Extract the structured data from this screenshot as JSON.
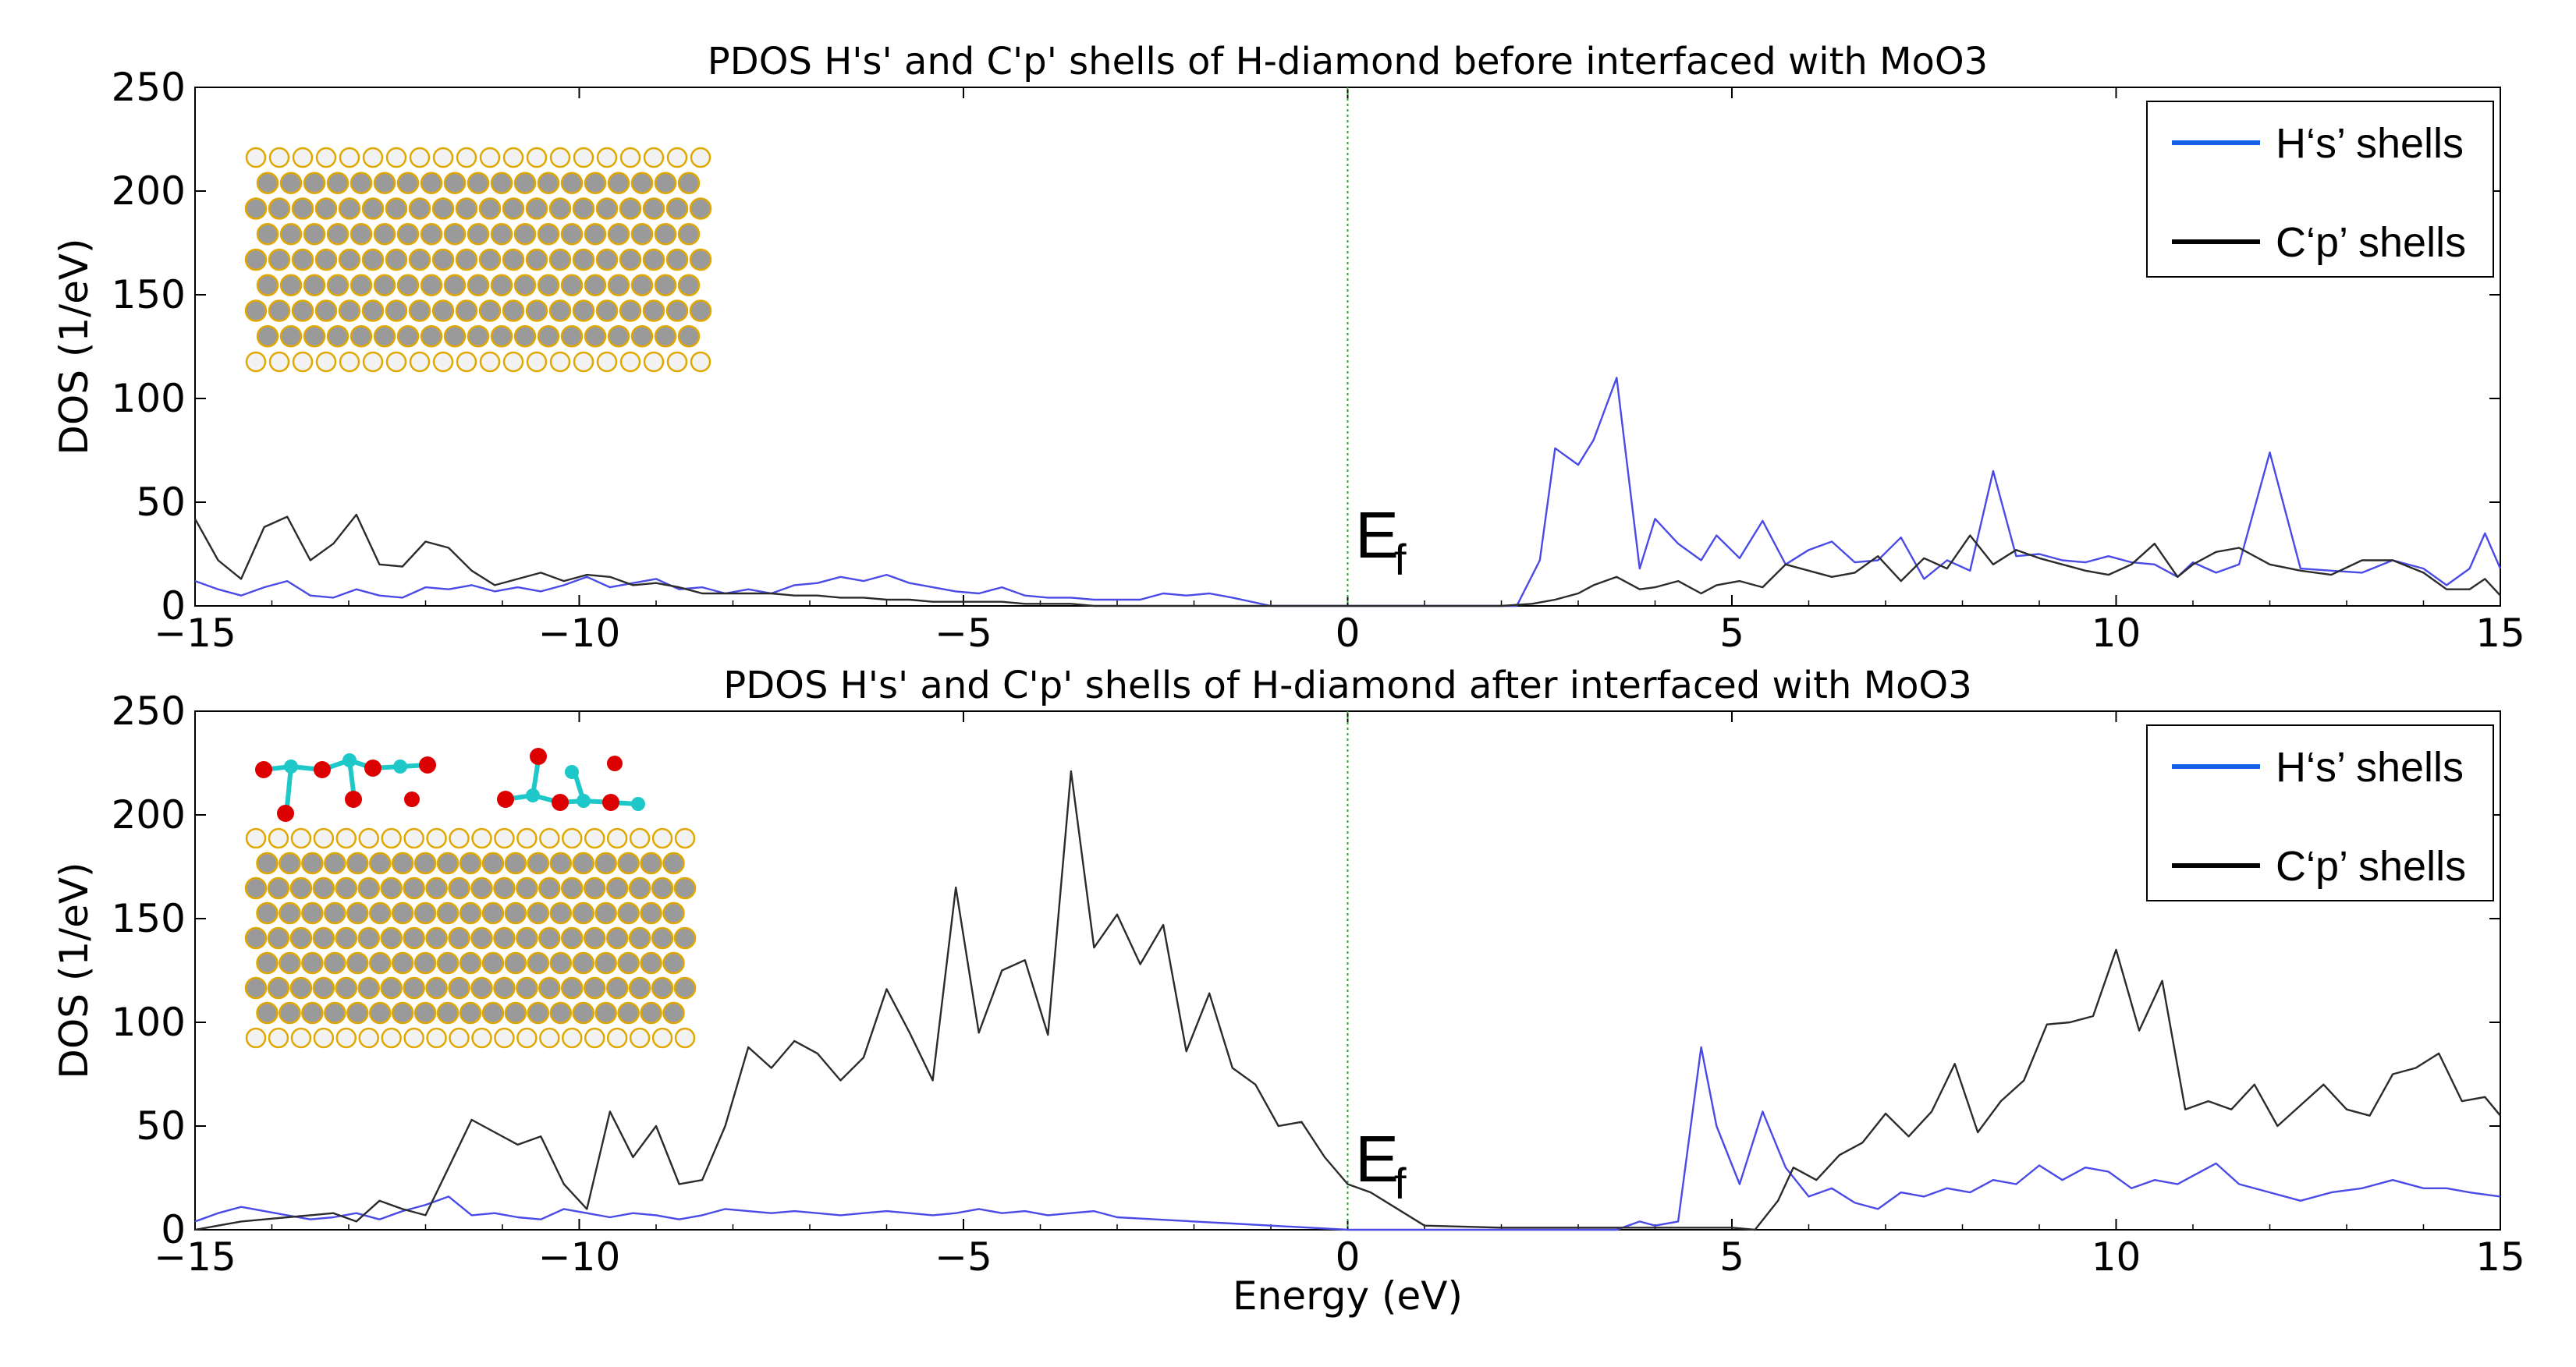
{
  "colors": {
    "h_s": "#4a4ae6",
    "c_p": "#2b2b2b",
    "legend_h_s": "#1560e6",
    "legend_c_p": "#000000",
    "fermi": "#2ca02c",
    "atom_c": "#9a9a9a",
    "atom_edge": "#e0a800",
    "atom_o": "#dd0000",
    "atom_mo": "#1ec8c8"
  },
  "icons": {
    "inset_top": "h-diamond-slab-structure",
    "inset_bottom": "h-diamond-moo3-interface-structure"
  },
  "chart_data": [
    {
      "type": "line",
      "title": "PDOS H's' and C'p' shells of H-diamond before interfaced with MoO3",
      "xlabel": "",
      "ylabel": "DOS (1/eV)",
      "xlim": [
        -15,
        15
      ],
      "ylim": [
        0,
        250
      ],
      "xticks": [
        -15,
        -10,
        -5,
        0,
        5,
        10,
        15
      ],
      "xtick_labels": [
        "−15",
        "−10",
        "−5",
        "0",
        "5",
        "10",
        "15"
      ],
      "yticks": [
        0,
        50,
        100,
        150,
        200,
        250
      ],
      "fermi_label": "E",
      "fermi_sub": "f",
      "legend": [
        "H‘s’ shells",
        "C‘p’ shells"
      ],
      "series": [
        {
          "name": "H's' shells",
          "x": [
            -15,
            -14.7,
            -14.4,
            -14.1,
            -13.8,
            -13.5,
            -13.2,
            -12.9,
            -12.6,
            -12.3,
            -12,
            -11.7,
            -11.4,
            -11.1,
            -10.8,
            -10.5,
            -10.2,
            -9.9,
            -9.6,
            -9.3,
            -9,
            -8.7,
            -8.4,
            -8.1,
            -7.8,
            -7.5,
            -7.2,
            -6.9,
            -6.6,
            -6.3,
            -6,
            -5.7,
            -5.4,
            -5.1,
            -4.8,
            -4.5,
            -4.2,
            -3.9,
            -3.6,
            -3.3,
            -3,
            -2.7,
            -2.4,
            -2.1,
            -1.8,
            -1.5,
            -1,
            -0.5,
            0,
            0.5,
            1,
            1.5,
            2,
            2.2,
            2.5,
            2.7,
            3,
            3.2,
            3.5,
            3.8,
            4,
            4.3,
            4.6,
            4.8,
            5.1,
            5.4,
            5.7,
            6,
            6.3,
            6.6,
            6.9,
            7.2,
            7.5,
            7.8,
            8.1,
            8.4,
            8.7,
            9,
            9.3,
            9.6,
            9.9,
            10.2,
            10.5,
            10.8,
            11,
            11.3,
            11.6,
            12,
            12.4,
            12.8,
            13.2,
            13.6,
            14,
            14.3,
            14.6,
            14.8,
            15
          ],
          "values": [
            12,
            8,
            5,
            9,
            12,
            5,
            4,
            8,
            5,
            4,
            9,
            8,
            10,
            7,
            9,
            7,
            10,
            14,
            9,
            11,
            13,
            8,
            9,
            6,
            8,
            6,
            10,
            11,
            14,
            12,
            15,
            11,
            9,
            7,
            6,
            9,
            5,
            4,
            4,
            3,
            3,
            3,
            6,
            5,
            6,
            4,
            0,
            0,
            0,
            0,
            0,
            0,
            0,
            0,
            22,
            76,
            68,
            80,
            110,
            18,
            42,
            30,
            22,
            34,
            23,
            41,
            20,
            27,
            31,
            21,
            22,
            33,
            13,
            22,
            17,
            65,
            24,
            25,
            22,
            21,
            24,
            21,
            20,
            14,
            21,
            16,
            20,
            74,
            18,
            17,
            16,
            22,
            18,
            10,
            18,
            35,
            18
          ]
        },
        {
          "name": "C'p' shells",
          "x": [
            -15,
            -14.7,
            -14.4,
            -14.1,
            -13.8,
            -13.5,
            -13.2,
            -12.9,
            -12.6,
            -12.3,
            -12,
            -11.7,
            -11.4,
            -11.1,
            -10.8,
            -10.5,
            -10.2,
            -9.9,
            -9.6,
            -9.3,
            -9,
            -8.7,
            -8.4,
            -8.1,
            -7.8,
            -7.5,
            -7.2,
            -6.9,
            -6.6,
            -6.3,
            -6,
            -5.7,
            -5.4,
            -5.1,
            -4.8,
            -4.5,
            -4.2,
            -3.9,
            -3.6,
            -3.3,
            -3,
            -2.5,
            -2,
            -1,
            0,
            1,
            2,
            2.4,
            2.7,
            3,
            3.2,
            3.5,
            3.8,
            4,
            4.3,
            4.6,
            4.8,
            5.1,
            5.4,
            5.7,
            6,
            6.3,
            6.6,
            6.9,
            7.2,
            7.5,
            7.8,
            8.1,
            8.4,
            8.7,
            9,
            9.3,
            9.6,
            9.9,
            10.2,
            10.5,
            10.8,
            11,
            11.3,
            11.6,
            12,
            12.4,
            12.8,
            13.2,
            13.6,
            14,
            14.3,
            14.6,
            14.8,
            15
          ],
          "values": [
            42,
            22,
            13,
            38,
            43,
            22,
            30,
            44,
            20,
            19,
            31,
            28,
            17,
            10,
            13,
            16,
            12,
            15,
            14,
            10,
            11,
            9,
            6,
            6,
            6,
            6,
            5,
            5,
            4,
            4,
            3,
            3,
            2,
            2,
            2,
            2,
            1,
            1,
            1,
            0,
            0,
            0,
            0,
            0,
            0,
            0,
            0,
            1,
            3,
            6,
            10,
            14,
            8,
            9,
            12,
            6,
            10,
            12,
            9,
            20,
            17,
            14,
            16,
            24,
            12,
            23,
            18,
            34,
            20,
            27,
            23,
            20,
            17,
            15,
            20,
            30,
            14,
            20,
            26,
            28,
            20,
            17,
            15,
            22,
            22,
            16,
            8,
            8,
            13,
            5
          ]
        }
      ]
    },
    {
      "type": "line",
      "title": "PDOS H's' and C'p' shells of H-diamond after interfaced with MoO3",
      "xlabel": "Energy (eV)",
      "ylabel": "DOS (1/eV)",
      "xlim": [
        -15,
        15
      ],
      "ylim": [
        0,
        250
      ],
      "xticks": [
        -15,
        -10,
        -5,
        0,
        5,
        10,
        15
      ],
      "xtick_labels": [
        "−15",
        "−10",
        "−5",
        "0",
        "5",
        "10",
        "15"
      ],
      "yticks": [
        0,
        50,
        100,
        150,
        200,
        250
      ],
      "fermi_label": "E",
      "fermi_sub": "f",
      "legend": [
        "H‘s’ shells",
        "C‘p’ shells"
      ],
      "series": [
        {
          "name": "H's' shells",
          "x": [
            -15,
            -14.7,
            -14.4,
            -14.1,
            -13.8,
            -13.5,
            -13.2,
            -12.9,
            -12.6,
            -12.3,
            -12,
            -11.7,
            -11.4,
            -11.1,
            -10.8,
            -10.5,
            -10.2,
            -9.9,
            -9.6,
            -9.3,
            -9,
            -8.7,
            -8.4,
            -8.1,
            -7.8,
            -7.5,
            -7.2,
            -6.9,
            -6.6,
            -6.3,
            -6,
            -5.7,
            -5.4,
            -5.1,
            -4.8,
            -4.5,
            -4.2,
            -3.9,
            -3.6,
            -3.3,
            -3,
            -2.5,
            -2,
            -1.5,
            -1,
            -0.5,
            0,
            0.5,
            1,
            2,
            3,
            3.5,
            3.8,
            4,
            4.3,
            4.6,
            4.8,
            5.1,
            5.4,
            5.7,
            6,
            6.3,
            6.6,
            6.9,
            7.2,
            7.5,
            7.8,
            8.1,
            8.4,
            8.7,
            9,
            9.3,
            9.6,
            9.9,
            10.2,
            10.5,
            10.8,
            11,
            11.3,
            11.6,
            12,
            12.4,
            12.8,
            13.2,
            13.6,
            14,
            14.3,
            14.6,
            14.8,
            15
          ],
          "values": [
            4,
            8,
            11,
            9,
            7,
            5,
            6,
            8,
            5,
            9,
            12,
            16,
            7,
            8,
            6,
            5,
            10,
            8,
            6,
            8,
            7,
            5,
            7,
            10,
            9,
            8,
            9,
            8,
            7,
            8,
            9,
            8,
            7,
            8,
            10,
            8,
            9,
            7,
            8,
            9,
            6,
            5,
            4,
            3,
            2,
            1,
            0,
            0,
            0,
            0,
            0,
            0,
            4,
            2,
            4,
            88,
            50,
            22,
            57,
            30,
            16,
            20,
            13,
            10,
            18,
            16,
            20,
            18,
            24,
            22,
            31,
            24,
            30,
            28,
            20,
            24,
            22,
            26,
            32,
            22,
            18,
            14,
            18,
            20,
            24,
            20,
            20,
            18,
            17,
            16
          ]
        },
        {
          "name": "C'p' shells",
          "x": [
            -15,
            -14.7,
            -14.4,
            -14.1,
            -13.8,
            -13.5,
            -13.2,
            -12.9,
            -12.6,
            -12.3,
            -12,
            -11.7,
            -11.4,
            -11.1,
            -10.8,
            -10.5,
            -10.2,
            -9.9,
            -9.6,
            -9.3,
            -9,
            -8.7,
            -8.4,
            -8.1,
            -7.8,
            -7.5,
            -7.2,
            -6.9,
            -6.6,
            -6.3,
            -6,
            -5.7,
            -5.4,
            -5.1,
            -4.8,
            -4.5,
            -4.2,
            -3.9,
            -3.6,
            -3.3,
            -3,
            -2.7,
            -2.4,
            -2.1,
            -1.8,
            -1.5,
            -1.2,
            -0.9,
            -0.6,
            -0.3,
            0,
            0.3,
            1,
            2,
            3,
            4,
            5,
            5.3,
            5.6,
            5.8,
            6.1,
            6.4,
            6.7,
            7,
            7.3,
            7.6,
            7.9,
            8.2,
            8.5,
            8.8,
            9.1,
            9.4,
            9.7,
            10,
            10.3,
            10.6,
            10.9,
            11.2,
            11.5,
            11.8,
            12.1,
            12.4,
            12.7,
            13,
            13.3,
            13.6,
            13.9,
            14.2,
            14.5,
            14.8,
            15
          ],
          "values": [
            0,
            2,
            4,
            5,
            6,
            7,
            8,
            4,
            14,
            10,
            7,
            30,
            53,
            47,
            41,
            45,
            22,
            10,
            57,
            35,
            50,
            22,
            24,
            50,
            88,
            78,
            91,
            85,
            72,
            83,
            116,
            95,
            72,
            165,
            95,
            125,
            130,
            94,
            221,
            136,
            152,
            128,
            147,
            86,
            114,
            78,
            70,
            50,
            52,
            35,
            22,
            18,
            2,
            1,
            1,
            1,
            1,
            0,
            14,
            30,
            24,
            36,
            42,
            56,
            45,
            57,
            80,
            47,
            62,
            72,
            99,
            100,
            103,
            135,
            96,
            120,
            58,
            62,
            58,
            70,
            50,
            60,
            70,
            58,
            55,
            75,
            78,
            85,
            62,
            64,
            55
          ]
        }
      ]
    }
  ]
}
